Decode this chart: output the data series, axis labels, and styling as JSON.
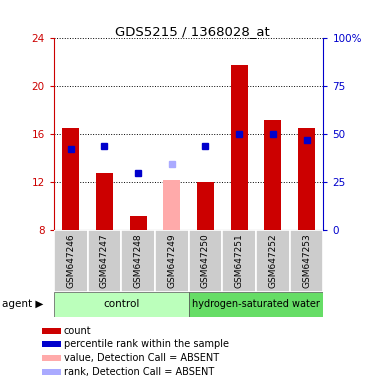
{
  "title": "GDS5215 / 1368028_at",
  "samples": [
    "GSM647246",
    "GSM647247",
    "GSM647248",
    "GSM647249",
    "GSM647250",
    "GSM647251",
    "GSM647252",
    "GSM647253"
  ],
  "bar_colors_present": "#cc0000",
  "bar_color_absent": "#ffaaaa",
  "dot_color_present": "#0000cc",
  "dot_color_absent": "#aaaaff",
  "ylim_left": [
    8,
    24
  ],
  "ylim_right": [
    0,
    100
  ],
  "yticks_left": [
    8,
    12,
    16,
    20,
    24
  ],
  "yticks_right": [
    0,
    25,
    50,
    75,
    100
  ],
  "yright_labels": [
    "0",
    "25",
    "50",
    "75",
    "100%"
  ],
  "bar_heights": [
    16.5,
    12.8,
    9.2,
    12.2,
    12.0,
    21.8,
    17.2,
    16.5
  ],
  "dot_values": [
    14.8,
    15.0,
    12.8,
    13.5,
    15.0,
    16.0,
    16.0,
    15.5
  ],
  "detection_calls": [
    "P",
    "P",
    "P",
    "A",
    "P",
    "P",
    "P",
    "P"
  ],
  "left_axis_color": "#cc0000",
  "right_axis_color": "#0000cc",
  "ctrl_color": "#bbffbb",
  "h2_color": "#66dd66",
  "sample_bg_color": "#cccccc",
  "legend_items": [
    {
      "label": "count",
      "color": "#cc0000"
    },
    {
      "label": "percentile rank within the sample",
      "color": "#0000cc"
    },
    {
      "label": "value, Detection Call = ABSENT",
      "color": "#ffaaaa"
    },
    {
      "label": "rank, Detection Call = ABSENT",
      "color": "#aaaaff"
    }
  ]
}
